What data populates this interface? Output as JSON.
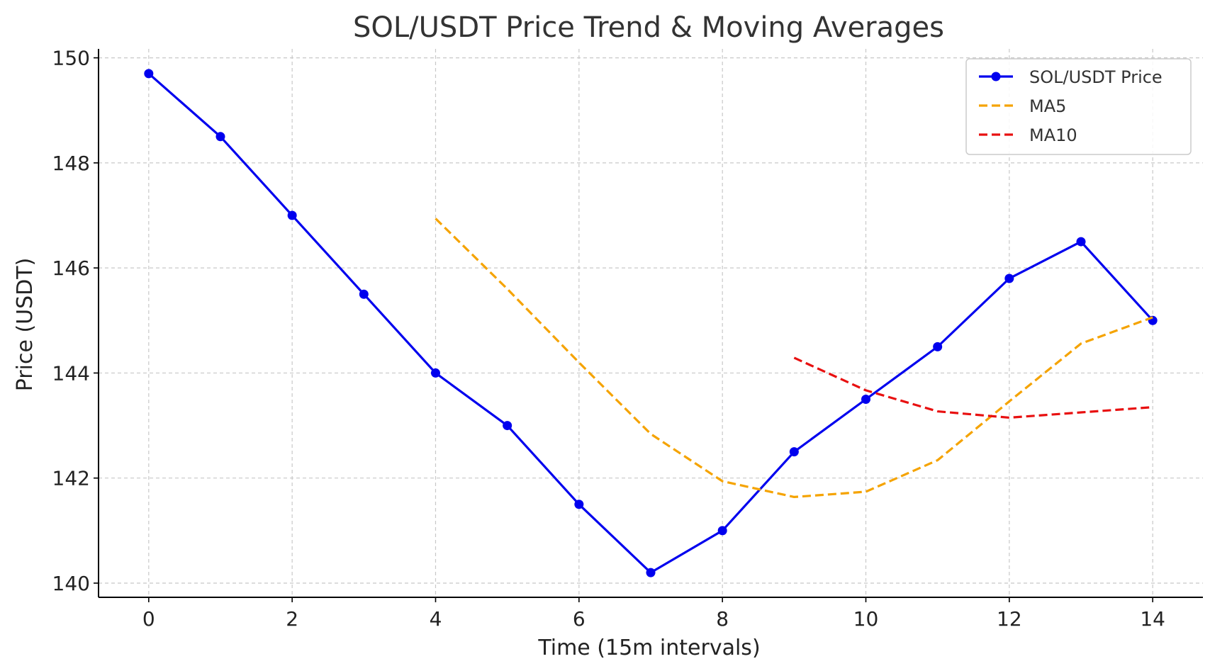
{
  "chart_data": {
    "type": "line",
    "title": "SOL/USDT Price Trend & Moving Averages",
    "xlabel": "Time (15m intervals)",
    "ylabel": "Price (USDT)",
    "xlim": [
      -0.7,
      14.7
    ],
    "ylim": [
      139.73,
      150.17
    ],
    "xticks": [
      0,
      2,
      4,
      6,
      8,
      10,
      12,
      14
    ],
    "yticks": [
      140,
      142,
      144,
      146,
      148,
      150
    ],
    "grid": true,
    "legend_position": "top-right",
    "series": [
      {
        "name": "SOL/USDT Price",
        "color": "#0000ee",
        "style": "solid",
        "marker": "circle",
        "x": [
          0,
          1,
          2,
          3,
          4,
          5,
          6,
          7,
          8,
          9,
          10,
          11,
          12,
          13,
          14
        ],
        "values": [
          149.7,
          148.5,
          147.0,
          145.5,
          144.0,
          143.0,
          141.5,
          140.2,
          141.0,
          142.5,
          143.5,
          144.5,
          145.8,
          146.5,
          145.0
        ]
      },
      {
        "name": "MA5",
        "color": "#f5a300",
        "style": "dashed",
        "marker": "none",
        "x": [
          4,
          5,
          6,
          7,
          8,
          9,
          10,
          11,
          12,
          13,
          14
        ],
        "values": [
          146.94,
          145.6,
          144.2,
          142.84,
          141.94,
          141.64,
          141.74,
          142.34,
          143.46,
          144.56,
          145.06
        ]
      },
      {
        "name": "MA10",
        "color": "#e81010",
        "style": "dashed",
        "marker": "none",
        "x": [
          9,
          10,
          11,
          12,
          13,
          14
        ],
        "values": [
          144.29,
          143.67,
          143.27,
          143.15,
          143.25,
          143.35
        ]
      }
    ]
  }
}
